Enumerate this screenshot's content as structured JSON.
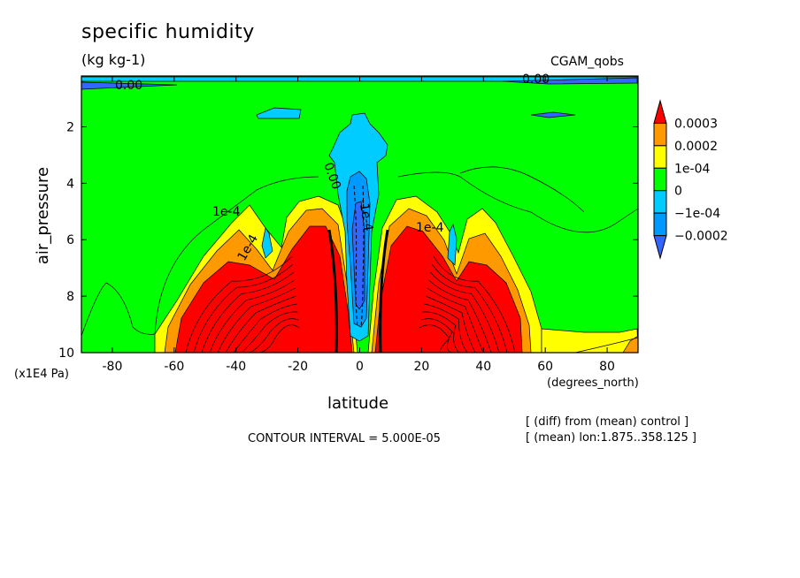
{
  "chart_data": {
    "type": "contour",
    "title": "specific humidity",
    "units": "(kg kg-1)",
    "dataset": "CGAM_qobs",
    "xlabel": "latitude",
    "xunits": "(degrees_north)",
    "ylabel": "air_pressure",
    "yunits": "(x1E4 Pa)",
    "x_ticks": [
      "-80",
      "-60",
      "-40",
      "-20",
      "0",
      "20",
      "40",
      "60",
      "80"
    ],
    "y_ticks": [
      "2",
      "4",
      "6",
      "8",
      "10"
    ],
    "xlim": [
      -90,
      90
    ],
    "ylim": [
      10,
      0.2
    ],
    "contour_interval_text": "CONTOUR INTERVAL = 5.000E-05",
    "notes": [
      "[ (diff) from (mean) control ]",
      "[ (mean) lon:1.875..358.125 ]"
    ],
    "colorbar": {
      "labels": [
        "0.0003",
        "0.0002",
        "1e-04",
        "0",
        "−1e-04",
        "−0.0002"
      ],
      "colors": [
        "#ff0000",
        "#ff9900",
        "#ffff00",
        "#00ff00",
        "#00ccff",
        "#0099ff",
        "#3366ff"
      ]
    },
    "contour_labels": [
      "0.00",
      "0.00",
      "1e-4",
      "1e-4",
      "0.00",
      "1e-4",
      "-1e-4"
    ],
    "fill_colors": {
      "red": "#ff0000",
      "orange": "#ff9900",
      "yellow": "#ffff00",
      "green": "#00ff00",
      "cyan": "#00ccff",
      "blue": "#0099ff",
      "darkblue": "#3366ff"
    }
  }
}
